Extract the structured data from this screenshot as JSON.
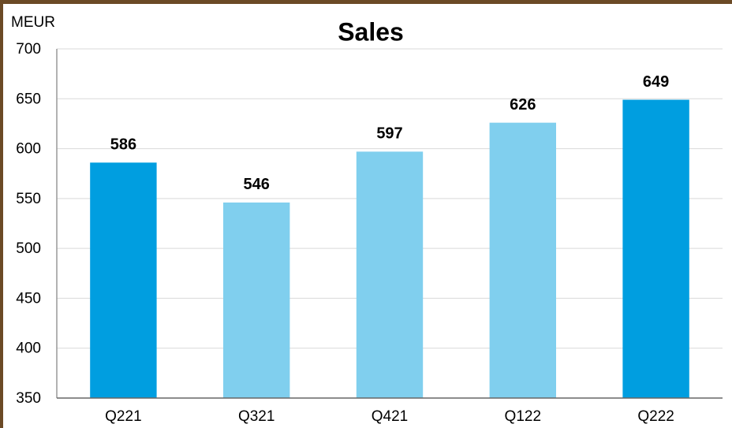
{
  "chart_data": {
    "type": "bar",
    "title": "Sales",
    "y_label": "MEUR",
    "categories": [
      "Q221",
      "Q321",
      "Q421",
      "Q122",
      "Q222"
    ],
    "values": [
      586,
      546,
      597,
      626,
      649
    ],
    "colors": [
      "#009ee0",
      "#80cfee",
      "#80cfee",
      "#80cfee",
      "#009ee0"
    ],
    "ylim": [
      350,
      700
    ],
    "yticks": [
      350,
      400,
      450,
      500,
      550,
      600,
      650,
      700
    ],
    "grid": true
  }
}
